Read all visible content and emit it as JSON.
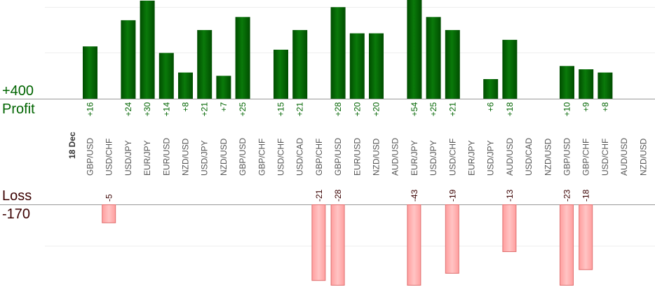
{
  "chart_data": {
    "type": "bar",
    "date_label": "18 Dec",
    "profit_label": "Profit",
    "profit_scale_label": "+400",
    "loss_label": "Loss",
    "loss_scale_label": "-170",
    "categories": [
      "GBP/USD",
      "USD/CHF",
      "USD/JPY",
      "EUR/JPY",
      "EUR/USD",
      "NZD/USD",
      "USD/JPY",
      "NZD/USD",
      "GBP/USD",
      "GBP/CHF",
      "USD/CHF",
      "USD/CAD",
      "GBP/CHF",
      "GBP/USD",
      "EUR/USD",
      "NZD/USD",
      "AUD/USD",
      "EUR/JPY",
      "USD/JPY",
      "USD/CHF",
      "EUR/JPY",
      "USD/JPY",
      "AUD/USD",
      "USD/CAD",
      "NZD/USD",
      "GBP/USD",
      "GBP/CHF",
      "USD/CHF",
      "AUD/USD",
      "NZD/USD"
    ],
    "series": [
      {
        "values": [
          16,
          null,
          24,
          30,
          14,
          8,
          21,
          7,
          25,
          null,
          15,
          21,
          null,
          28,
          20,
          20,
          null,
          54,
          25,
          21,
          null,
          6,
          18,
          null,
          null,
          10,
          9,
          8,
          null,
          null
        ]
      },
      {
        "values": [
          null,
          -5,
          null,
          null,
          null,
          null,
          null,
          null,
          null,
          null,
          null,
          null,
          -21,
          -28,
          null,
          null,
          null,
          -43,
          null,
          -19,
          null,
          null,
          -13,
          null,
          null,
          -23,
          -18,
          null,
          null,
          null
        ]
      }
    ],
    "colors": {
      "profit": "#006400",
      "loss": "#ffb0b0",
      "loss_border": "#e07070",
      "loss_text": "#3a0000"
    },
    "grid": true
  }
}
